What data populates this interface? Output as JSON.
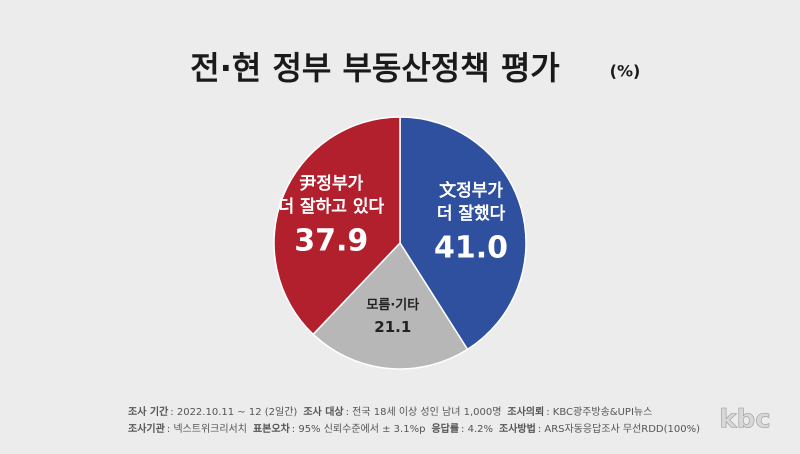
{
  "chart_data": {
    "type": "pie",
    "title": "전·현 정부 부동산정책 평가",
    "unit": "(%)",
    "labels": [
      [
        "文정부가",
        "더 잘했다"
      ],
      [
        "모름·기타"
      ],
      [
        "尹정부가",
        "더 잘하고 있다"
      ]
    ],
    "values": [
      41.0,
      21.1,
      37.9
    ],
    "value_labels": [
      "41.0",
      "21.1",
      "37.9"
    ],
    "colors": [
      "#2f4f9f",
      "#b7b7b7",
      "#b3202d"
    ]
  },
  "footer": {
    "rows": [
      [
        {
          "label": "조사 기간",
          "text": ": 2022.10.11 ~ 12 (2일간)"
        },
        {
          "label": "조사 대상",
          "text": ": 전국 18세 이상 성인 남녀 1,000명"
        },
        {
          "label": "조사의뢰",
          "text": ": KBC광주방송&UPI뉴스"
        }
      ],
      [
        {
          "label": "조사기관",
          "text": ": 넥스트위크리서치"
        },
        {
          "label": "표본오차",
          "text": ": 95% 신뢰수준에서 ± 3.1%p"
        },
        {
          "label": "응답률",
          "text": ": 4.2%"
        },
        {
          "label": "조사방법",
          "text": ": ARS자동응답조사 무선RDD(100%)"
        }
      ]
    ],
    "logo": "kbc"
  }
}
